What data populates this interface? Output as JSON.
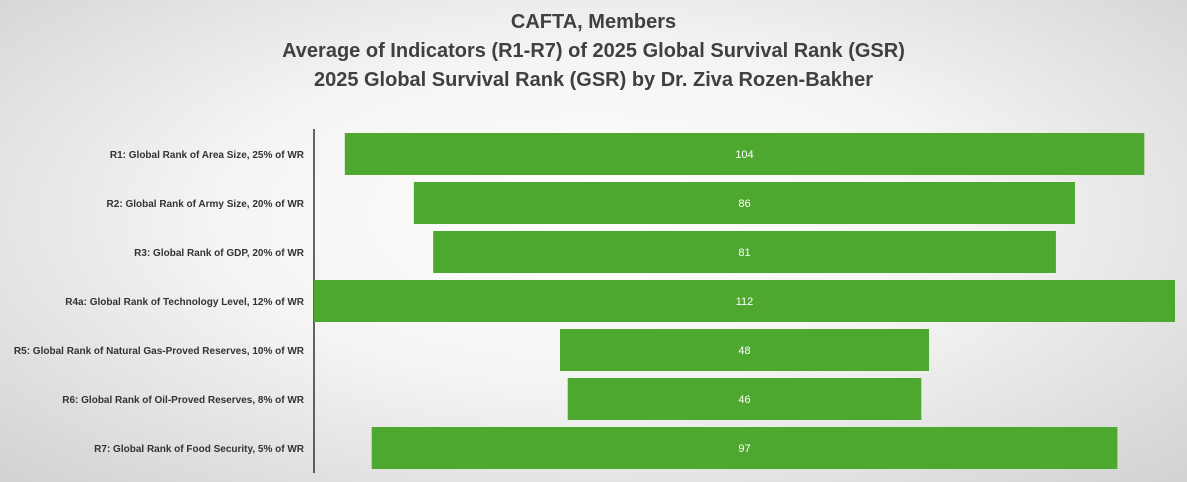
{
  "chart_data": {
    "type": "bar",
    "orientation": "horizontal",
    "style": "centered-funnel",
    "title": [
      "CAFTA, Members",
      "Average of Indicators (R1-R7) of 2025 Global Survival Rank (GSR)",
      "2025 Global Survival Rank (GSR) by Dr. Ziva Rozen-Bakher"
    ],
    "categories": [
      "R1: Global Rank of Area Size, 25% of WR",
      "R2: Global Rank of Army Size, 20% of WR",
      "R3: Global Rank of GDP, 20% of WR",
      "R4a: Global Rank of Technology Level, 12% of WR",
      "R5: Global Rank of Natural Gas-Proved Reserves, 10% of WR",
      "R6: Global Rank of Oil-Proved Reserves, 8% of WR",
      "R7: Global Rank of Food Security, 5% of WR"
    ],
    "values": [
      104,
      86,
      81,
      112,
      48,
      46,
      97
    ],
    "xlim": [
      0,
      112
    ],
    "bar_color": "#4ea72e",
    "value_label_color": "#ffffff",
    "gridlines": false,
    "legend": "none"
  }
}
